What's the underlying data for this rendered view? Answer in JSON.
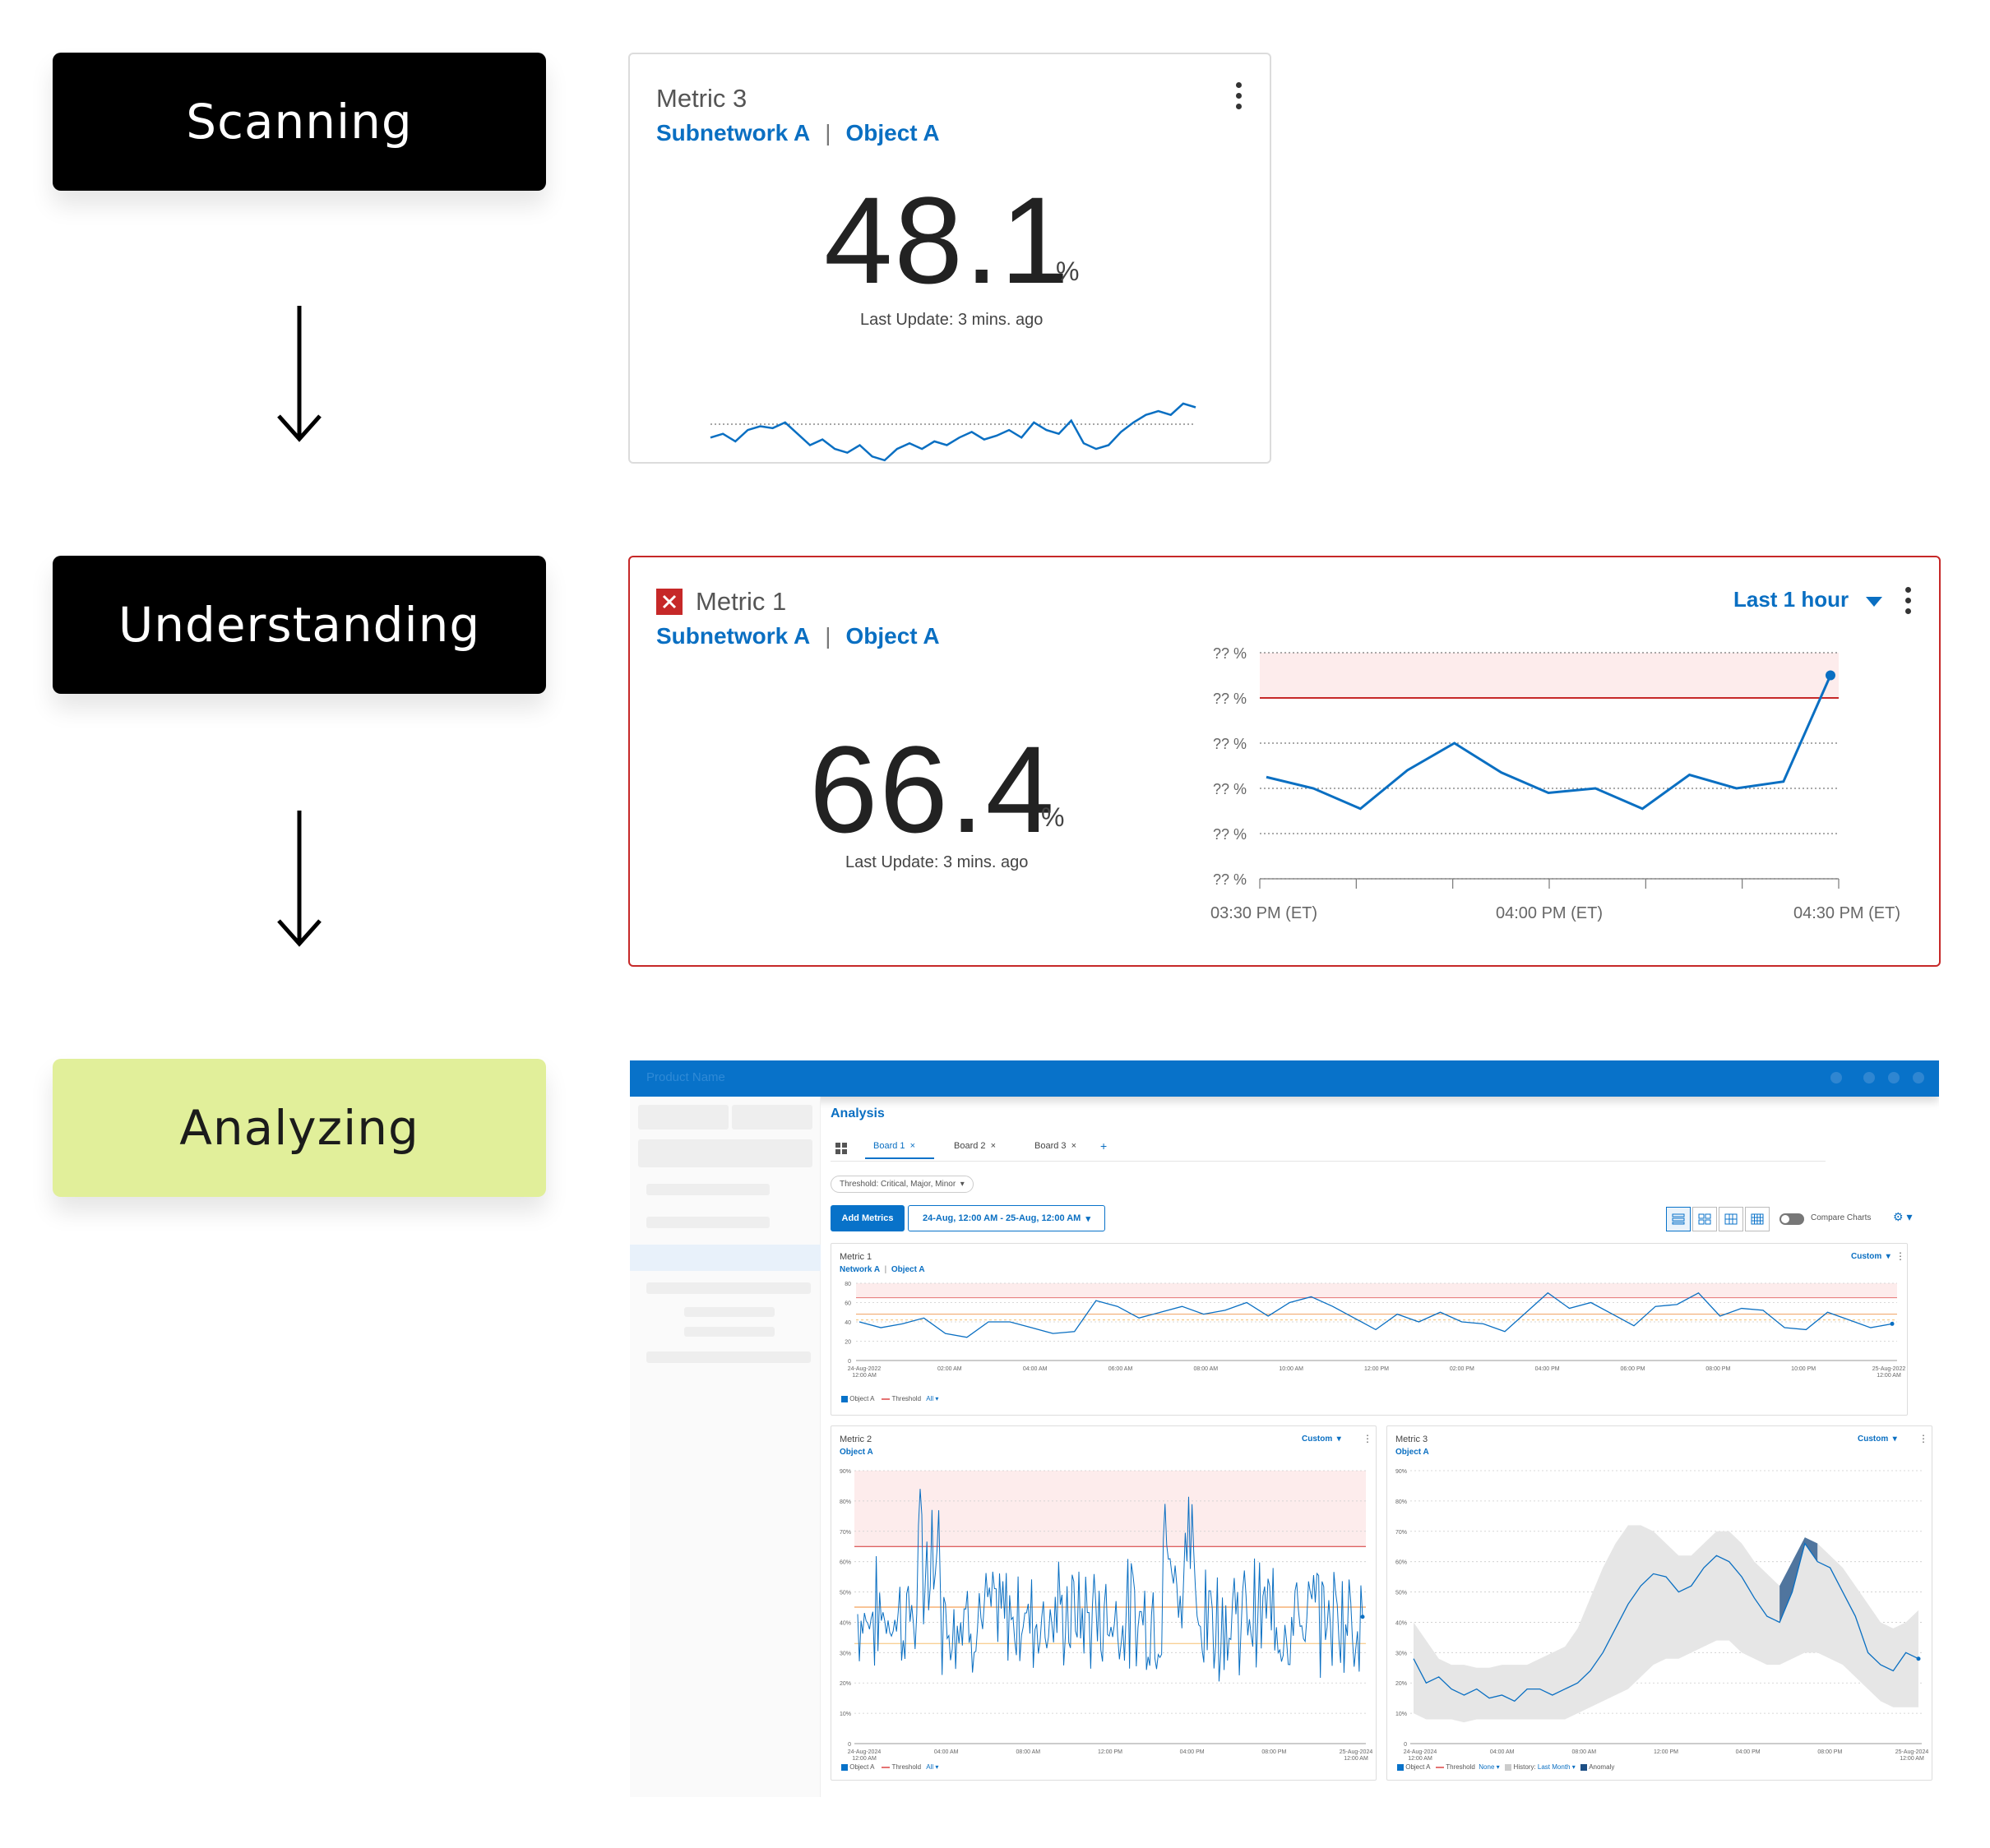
{
  "stages": [
    {
      "label": "Scanning"
    },
    {
      "label": "Understanding"
    },
    {
      "label": "Analyzing"
    }
  ],
  "colors": {
    "accent": "#0a6fc2",
    "alert": "#c62828",
    "analyze": "#e1ef9a"
  },
  "icons": {
    "down_arrow": "arrow-down-icon",
    "kebab": "more-vert-icon",
    "alert": "alert-x-icon",
    "caret": "caret-down-icon"
  },
  "scan_card": {
    "title": "Metric 3",
    "sub1": "Subnetwork A",
    "sep": "|",
    "sub2": "Object A",
    "value": "48.1",
    "unit": "%",
    "last_update": "Last Update: 3 mins. ago",
    "sparkline": [
      34,
      36,
      32,
      38,
      40,
      39,
      42,
      36,
      30,
      33,
      28,
      26,
      30,
      24,
      22,
      28,
      31,
      28,
      32,
      30,
      34,
      37,
      33,
      35,
      38,
      34,
      42,
      38,
      36,
      43,
      31,
      28,
      30,
      37,
      42,
      46,
      48,
      46,
      52,
      50
    ]
  },
  "understand_card": {
    "title": "Metric 1",
    "sub1": "Subnetwork A",
    "sep": "|",
    "sub2": "Object A",
    "range_label": "Last 1 hour",
    "value": "66.4",
    "unit": "%",
    "last_update": "Last Update: 3 mins. ago",
    "chart_data": {
      "type": "line",
      "y_tick_labels": [
        "?? %",
        "?? %",
        "?? %",
        "?? %",
        "?? %",
        "?? %"
      ],
      "x_tick_labels": [
        "03:30 PM (ET)",
        "04:00 PM (ET)",
        "04:30 PM (ET)"
      ],
      "threshold_band": "top",
      "values": [
        2.25,
        2.0,
        1.55,
        2.4,
        3.0,
        2.35,
        1.9,
        2.0,
        1.55,
        2.3,
        2.0,
        2.15,
        4.5
      ]
    }
  },
  "dashboard": {
    "product_name": "Product Name",
    "page_title": "Analysis",
    "tabs": [
      {
        "label": "Board 1",
        "close": "×"
      },
      {
        "label": "Board 2",
        "close": "×"
      },
      {
        "label": "Board 3",
        "close": "×"
      }
    ],
    "add_tab": "+",
    "threshold_filter": "Threshold: Critical, Major, Minor",
    "add_metrics": "Add Metrics",
    "date_range": "24-Aug, 12:00 AM - 25-Aug, 12:00 AM",
    "compare_charts": "Compare Charts",
    "panels": {
      "metric1": {
        "title": "Metric 1",
        "sub1": "Network A",
        "sep": "|",
        "sub2": "Object A",
        "custom": "Custom",
        "legend_object": "Object A",
        "legend_threshold": "Threshold",
        "legend_filter": "All",
        "y_ticks": [
          "80",
          "60",
          "40",
          "20",
          "0"
        ],
        "x_ticks": [
          "24-Aug-2022, 12:00 AM",
          "02:00 AM",
          "04:00 AM",
          "06:00 AM",
          "08:00 AM",
          "10:00 AM",
          "12:00 PM",
          "02:00 PM",
          "04:00 PM",
          "06:00 PM",
          "08:00 PM",
          "10:00 PM",
          "25-Aug-2022, 12:00 AM"
        ],
        "chart_data": {
          "type": "line",
          "ylim": [
            0,
            80
          ],
          "values": [
            40,
            34,
            38,
            44,
            28,
            24,
            40,
            40,
            34,
            28,
            30,
            62,
            56,
            44,
            50,
            56,
            48,
            52,
            60,
            46,
            60,
            66,
            56,
            44,
            32,
            48,
            40,
            50,
            40,
            38,
            30,
            50,
            70,
            54,
            60,
            48,
            36,
            56,
            58,
            70,
            46,
            54,
            52,
            34,
            32,
            50,
            42,
            34,
            38
          ]
        }
      },
      "metric2": {
        "title": "Metric 2",
        "sub": "Object A",
        "custom": "Custom",
        "legend_object": "Object A",
        "legend_threshold": "Threshold",
        "legend_filter": "All",
        "y_ticks": [
          "90%",
          "80%",
          "70%",
          "60%",
          "50%",
          "40%",
          "30%",
          "20%",
          "10%",
          "0"
        ],
        "x_ticks": [
          "24-Aug-2024, 12:00 AM",
          "04:00 AM",
          "08:00 AM",
          "12:00 PM",
          "04:00 PM",
          "08:00 PM",
          "25-Aug-2024, 12:00 AM"
        ],
        "chart_data": {
          "type": "line",
          "ylim": [
            0,
            90
          ],
          "threshold_critical": 65,
          "threshold_major": 45,
          "threshold_minor": 33
        }
      },
      "metric3": {
        "title": "Metric 3",
        "sub": "Object A",
        "custom": "Custom",
        "legend_object": "Object A",
        "legend_threshold": "Threshold",
        "legend_threshold_filter": "None",
        "legend_history": "History:",
        "legend_history_filter": "Last Month",
        "legend_anomaly": "Anomaly",
        "y_ticks": [
          "90%",
          "80%",
          "70%",
          "60%",
          "50%",
          "40%",
          "30%",
          "20%",
          "10%",
          "0"
        ],
        "x_ticks": [
          "24-Aug-2024, 12:00 AM",
          "04:00 AM",
          "08:00 AM",
          "12:00 PM",
          "04:00 PM",
          "08:00 PM",
          "25-Aug-2024, 12:00 AM"
        ],
        "chart_data": {
          "type": "area",
          "ylim": [
            0,
            90
          ],
          "values": [
            28,
            20,
            22,
            18,
            16,
            18,
            15,
            16,
            14,
            18,
            18,
            16,
            18,
            20,
            24,
            30,
            38,
            46,
            52,
            56,
            55,
            50,
            52,
            58,
            62,
            60,
            55,
            48,
            42,
            40,
            50,
            66,
            60,
            58,
            50,
            42,
            30,
            26,
            24,
            30,
            28
          ],
          "band_low": [
            10,
            8,
            8,
            8,
            7,
            8,
            8,
            8,
            8,
            8,
            8,
            8,
            8,
            10,
            12,
            14,
            16,
            18,
            22,
            26,
            28,
            28,
            30,
            32,
            34,
            34,
            30,
            28,
            26,
            26,
            28,
            30,
            30,
            28,
            26,
            22,
            18,
            14,
            12,
            12,
            12
          ],
          "band_high": [
            40,
            34,
            28,
            26,
            26,
            25,
            25,
            26,
            26,
            26,
            28,
            30,
            32,
            38,
            48,
            58,
            66,
            72,
            72,
            70,
            66,
            62,
            62,
            66,
            70,
            70,
            66,
            60,
            56,
            52,
            60,
            68,
            66,
            62,
            58,
            52,
            46,
            40,
            38,
            40,
            44
          ]
        }
      }
    }
  }
}
